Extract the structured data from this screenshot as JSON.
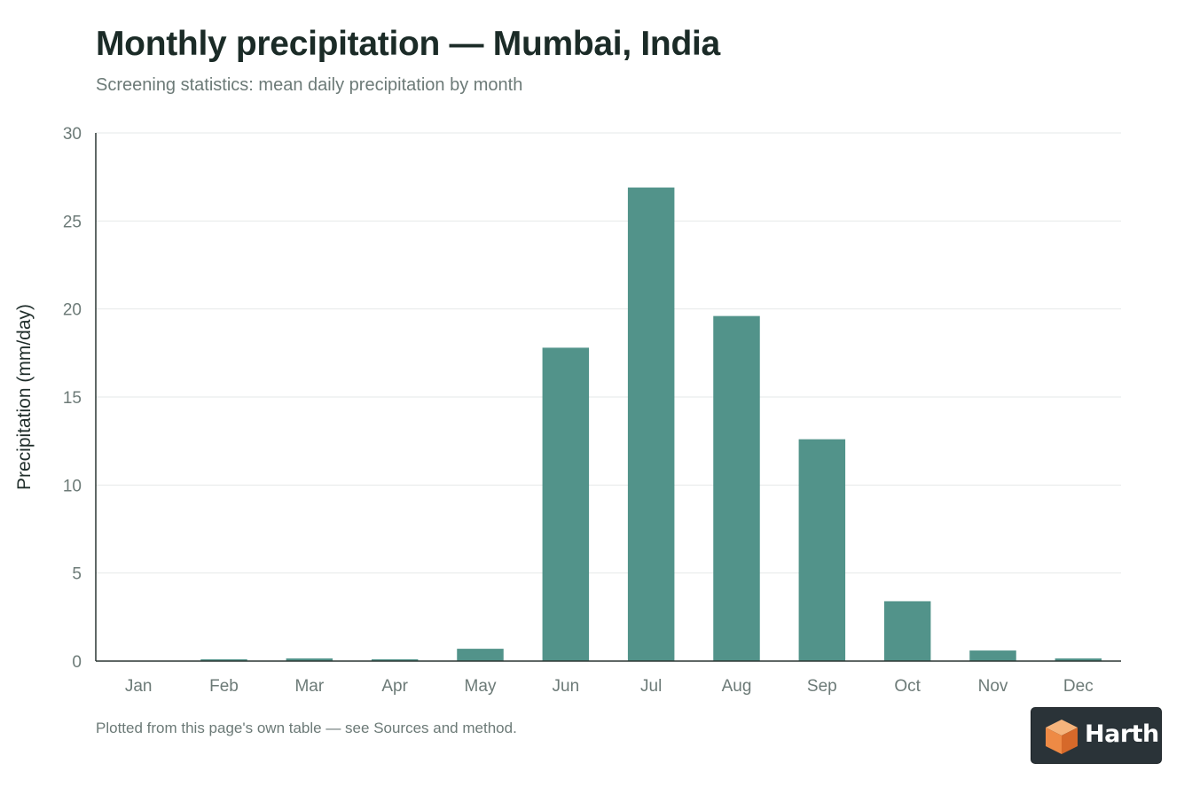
{
  "header": {
    "title": "Monthly precipitation — Mumbai, India",
    "subtitle": "Screening statistics: mean daily precipitation by month"
  },
  "footnote": "Plotted from this page's own table — see Sources and method.",
  "brand": {
    "name": "Harth",
    "icon": "cube-logo-icon",
    "colors": {
      "badge_bg": "#2a3338",
      "logo_top": "#f5b47c",
      "logo_left": "#ee8a45",
      "logo_right": "#d6692a"
    }
  },
  "chart_data": {
    "type": "bar",
    "categories": [
      "Jan",
      "Feb",
      "Mar",
      "Apr",
      "May",
      "Jun",
      "Jul",
      "Aug",
      "Sep",
      "Oct",
      "Nov",
      "Dec"
    ],
    "values": [
      0.0,
      0.1,
      0.15,
      0.1,
      0.7,
      17.8,
      26.9,
      19.6,
      12.6,
      3.4,
      0.6,
      0.15
    ],
    "title": "Monthly precipitation — Mumbai, India",
    "subtitle": "Screening statistics: mean daily precipitation by month",
    "xlabel": "",
    "ylabel": "Precipitation (mm/day)",
    "ylim": [
      0,
      30
    ],
    "yticks": [
      0,
      5,
      10,
      15,
      20,
      25,
      30
    ],
    "grid": true,
    "legend": "none",
    "colors": {
      "bar": "#52938a",
      "grid": "#e6e9e8",
      "axis": "#2b3633",
      "tick_text": "#6c7a77"
    }
  }
}
